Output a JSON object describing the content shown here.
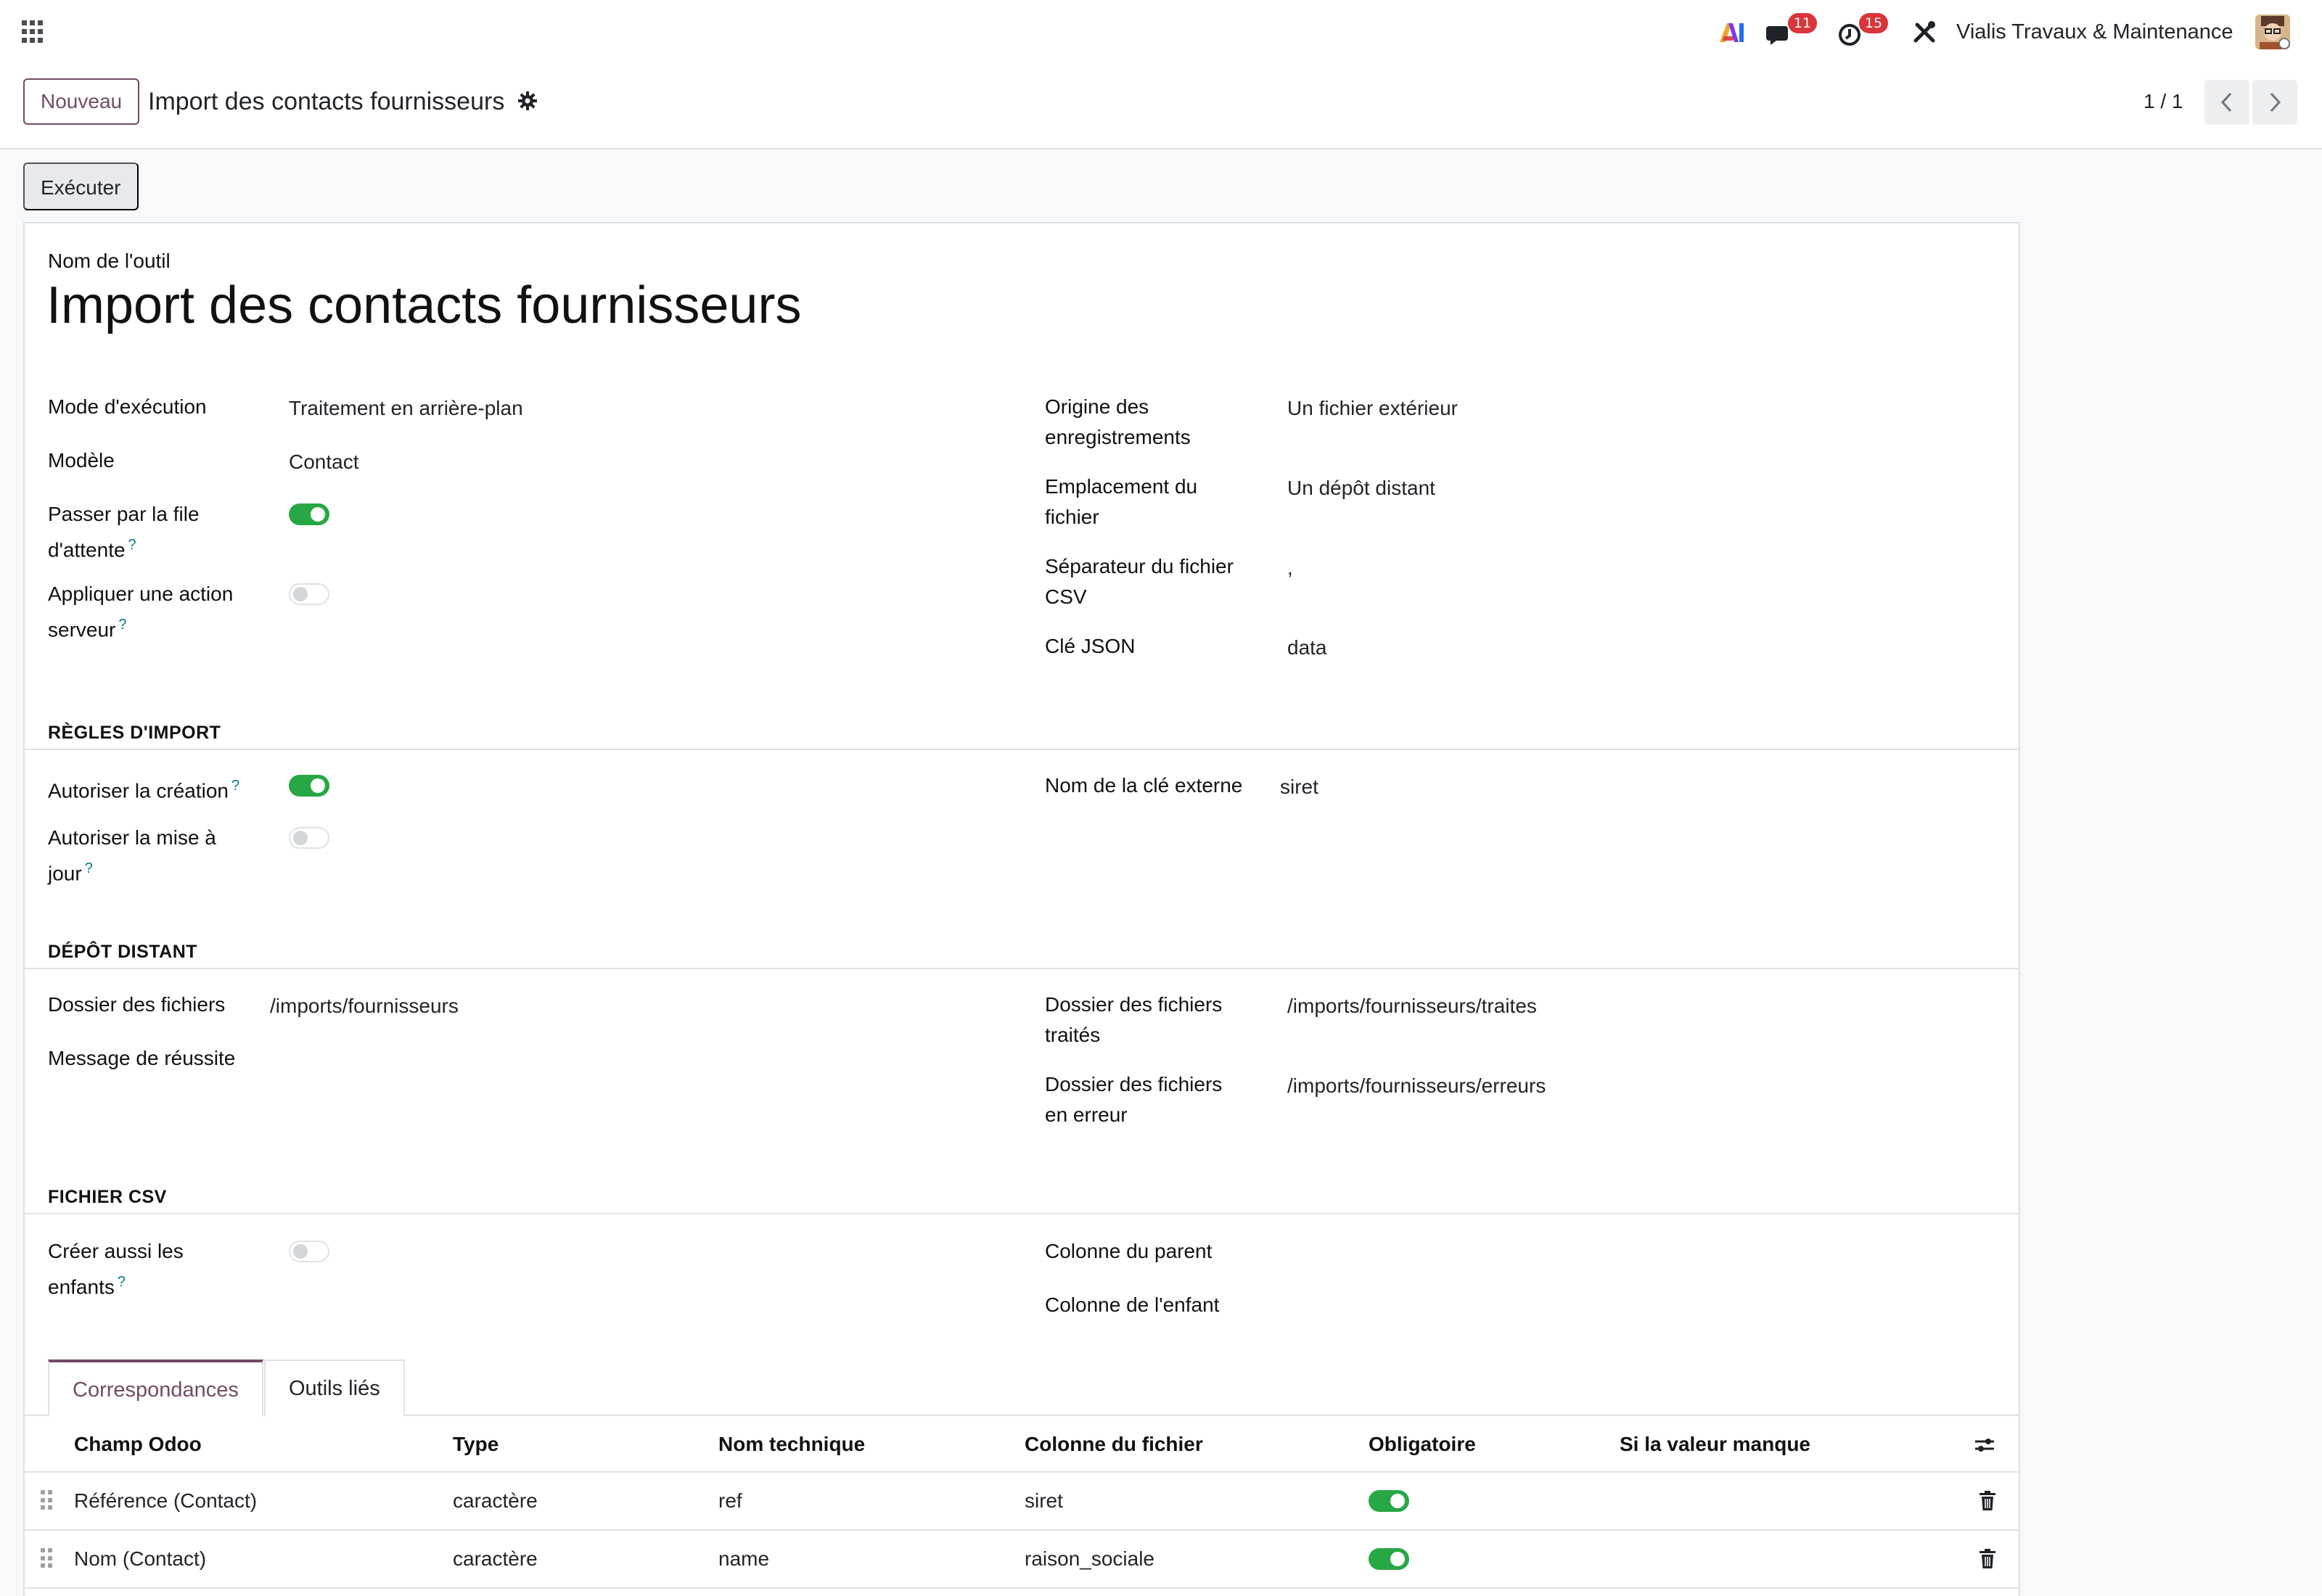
{
  "navbar": {
    "apps_icon": "apps-grid-icon",
    "ai_icon": "ai-icon",
    "messages_count": "11",
    "activities_count": "15",
    "tools_icon": "tools-icon",
    "company": "Vialis Travaux & Maintenance",
    "avatar": "user-avatar"
  },
  "control_panel": {
    "new_button": "Nouveau",
    "title": "Import des contacts fournisseurs",
    "pager": "1 / 1"
  },
  "status_bar": {
    "execute_button": "Exécuter"
  },
  "form": {
    "tool_name_label": "Nom de l'outil",
    "tool_name": "Import des contacts fournisseurs",
    "general": {
      "mode_label": "Mode d'exécution",
      "mode_value": "Traitement en arrière-plan",
      "model_label": "Modèle",
      "model_value": "Contact",
      "queue_label_1": "Passer par la file",
      "queue_label_2": "d'attente",
      "queue_on": true,
      "server_action_label_1": "Appliquer une action",
      "server_action_label_2": "serveur",
      "server_action_on": false,
      "origin_label_1": "Origine des",
      "origin_label_2": "enregistrements",
      "origin_value": "Un fichier extérieur",
      "location_label_1": "Emplacement du",
      "location_label_2": "fichier",
      "location_value": "Un dépôt distant",
      "separator_label_1": "Séparateur du fichier",
      "separator_label_2": "CSV",
      "separator_value": ",",
      "json_key_label": "Clé JSON",
      "json_key_value": "data"
    },
    "import_rules": {
      "title": "RÈGLES D'IMPORT",
      "allow_create_label": "Autoriser la création",
      "allow_create_on": true,
      "allow_update_label_1": "Autoriser la mise à",
      "allow_update_label_2": "jour",
      "allow_update_on": false,
      "external_key_label": "Nom de la clé externe",
      "external_key_value": "siret"
    },
    "remote": {
      "title": "DÉPÔT DISTANT",
      "folder_label": "Dossier des fichiers",
      "folder_value": "/imports/fournisseurs",
      "success_label": "Message de réussite",
      "processed_label_1": "Dossier des fichiers",
      "processed_label_2": "traités",
      "processed_value": "/imports/fournisseurs/traites",
      "error_label_1": "Dossier des fichiers",
      "error_label_2": "en erreur",
      "error_value": "/imports/fournisseurs/erreurs"
    },
    "csv": {
      "title": "FICHIER CSV",
      "children_label_1": "Créer aussi les",
      "children_label_2": "enfants",
      "children_on": false,
      "parent_col_label": "Colonne du parent",
      "child_col_label": "Colonne de l'enfant"
    },
    "tabs": [
      "Correspondances",
      "Outils liés"
    ],
    "table": {
      "headers": [
        "Champ Odoo",
        "Type",
        "Nom technique",
        "Colonne du fichier",
        "Obligatoire",
        "Si la valeur manque"
      ],
      "rows": [
        {
          "field": "Référence (Contact)",
          "type": "caractère",
          "technical": "ref",
          "column": "siret",
          "required": true
        },
        {
          "field": "Nom (Contact)",
          "type": "caractère",
          "technical": "name",
          "column": "raison_sociale",
          "required": true
        }
      ]
    }
  },
  "colors": {
    "primary": "#714b67",
    "toggle_on": "#28a745",
    "badge": "#d9353b",
    "help": "#017e84"
  }
}
